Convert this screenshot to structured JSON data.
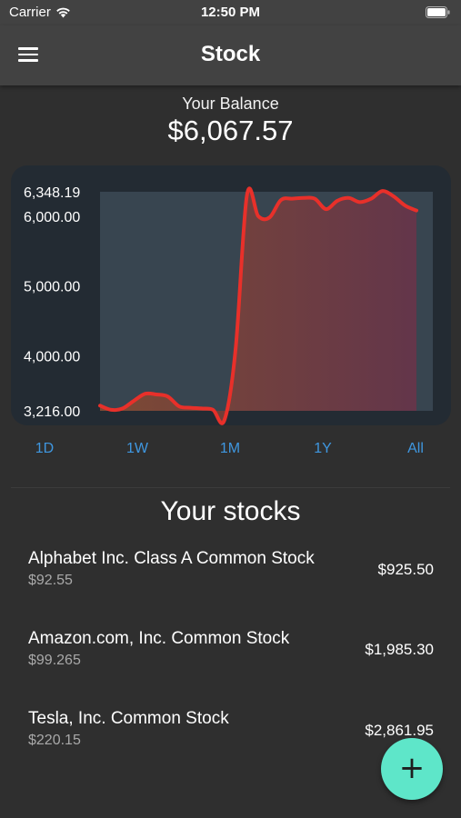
{
  "status_bar": {
    "carrier": "Carrier",
    "time": "12:50 PM",
    "icons": [
      "wifi-icon",
      "battery-icon"
    ]
  },
  "app_bar": {
    "title": "Stock",
    "menu_icon": "hamburger-menu-icon"
  },
  "balance": {
    "label": "Your Balance",
    "value": "$6,067.57"
  },
  "chart_data": {
    "type": "area",
    "title": "",
    "xlabel": "",
    "ylabel": "",
    "y_ticks": [
      "6,348.19",
      "6,000.00",
      "5,000.00",
      "4,000.00",
      "3,216.00"
    ],
    "ylim": [
      3216.0,
      6348.19
    ],
    "grid": false,
    "legend": "none",
    "series": [
      {
        "values": [
          3290,
          3230,
          3250,
          3360,
          3460,
          3450,
          3420,
          3280,
          3260,
          3250,
          3230,
          3080,
          4100,
          6300,
          6000,
          5980,
          6230,
          6250,
          6260,
          6250,
          6100,
          6220,
          6260,
          6200,
          6250,
          6360,
          6280,
          6150,
          6080
        ]
      }
    ],
    "colors": {
      "line": "#e8302a",
      "fill_left": "#8a4b2f",
      "fill_right": "#6b3349",
      "plot_bg": "#384550",
      "card_bg": "#232b33"
    }
  },
  "ranges": [
    "1D",
    "1W",
    "1M",
    "1Y",
    "All"
  ],
  "stocks_section": {
    "title": "Your stocks",
    "items": [
      {
        "name": "Alphabet Inc. Class A Common Stock",
        "price": "$92.55",
        "value": "$925.50"
      },
      {
        "name": "Amazon.com, Inc. Common Stock",
        "price": "$99.265",
        "value": "$1,985.30"
      },
      {
        "name": "Tesla, Inc. Common Stock",
        "price": "$220.15",
        "value": "$2,861.95"
      }
    ]
  },
  "fab": {
    "icon": "plus-icon",
    "symbol": "+"
  },
  "accent_colors": {
    "range_link": "#3f97e0",
    "fab": "#5ee6c9"
  }
}
